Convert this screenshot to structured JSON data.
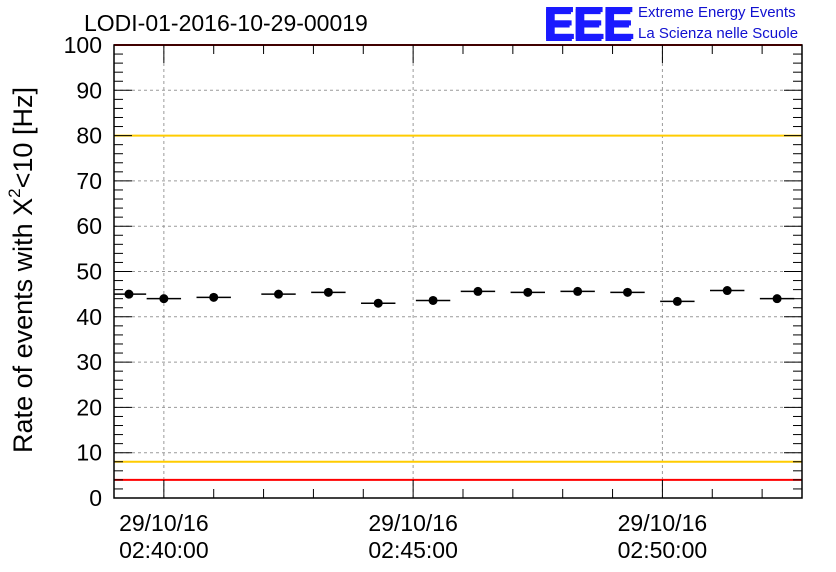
{
  "header": {
    "title": "LODI-01-2016-10-29-00019",
    "logo_mark": "EEE",
    "logo_line1": "Extreme Energy Events",
    "logo_line2": "La Scienza nelle Scuole"
  },
  "chart_data": {
    "type": "scatter",
    "title": "LODI-01-2016-10-29-00019",
    "xlabel": "",
    "ylabel_main": "Rate of events with X",
    "ylabel_sup": "2",
    "ylabel_tail": "<10 [Hz]",
    "ylim": [
      0,
      100
    ],
    "xlim_minutes": [
      -1.0,
      12.8
    ],
    "yticks": [
      0,
      10,
      20,
      30,
      40,
      50,
      60,
      70,
      80,
      90,
      100
    ],
    "xticks": [
      {
        "t": 0,
        "date": "29/10/16",
        "time": "02:40:00"
      },
      {
        "t": 5,
        "date": "29/10/16",
        "time": "02:45:00"
      },
      {
        "t": 10,
        "date": "29/10/16",
        "time": "02:50:00"
      }
    ],
    "grid": true,
    "bin_width_minutes": 0.69,
    "points": [
      {
        "x": -0.7,
        "y": 45.0
      },
      {
        "x": 0.0,
        "y": 44.0
      },
      {
        "x": 1.0,
        "y": 44.3
      },
      {
        "x": 2.3,
        "y": 45.0
      },
      {
        "x": 3.3,
        "y": 45.4
      },
      {
        "x": 4.3,
        "y": 43.0
      },
      {
        "x": 5.4,
        "y": 43.6
      },
      {
        "x": 6.3,
        "y": 45.6
      },
      {
        "x": 7.3,
        "y": 45.4
      },
      {
        "x": 8.3,
        "y": 45.6
      },
      {
        "x": 9.3,
        "y": 45.4
      },
      {
        "x": 10.3,
        "y": 43.4
      },
      {
        "x": 11.3,
        "y": 45.8
      },
      {
        "x": 12.3,
        "y": 44.0
      }
    ],
    "reference_lines": [
      {
        "y": 100,
        "color": "#ff0000"
      },
      {
        "y": 80,
        "color": "#ffcc00"
      },
      {
        "y": 8,
        "color": "#ffcc00"
      },
      {
        "y": 4,
        "color": "#ff0000"
      }
    ]
  }
}
